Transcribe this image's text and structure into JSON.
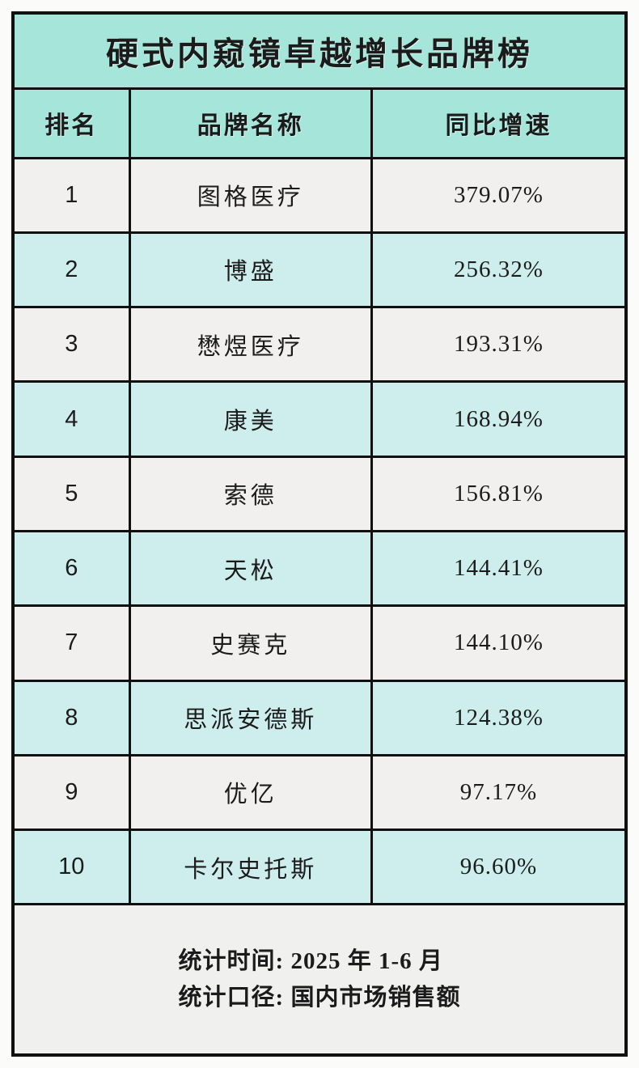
{
  "title": "硬式内窥镜卓越增长品牌榜",
  "table": {
    "headers": [
      "排名",
      "品牌名称",
      "同比增速"
    ],
    "rows": [
      {
        "rank": "1",
        "brand": "图格医疗",
        "growth": "379.07%"
      },
      {
        "rank": "2",
        "brand": "博盛",
        "growth": "256.32%"
      },
      {
        "rank": "3",
        "brand": "懋煜医疗",
        "growth": "193.31%"
      },
      {
        "rank": "4",
        "brand": "康美",
        "growth": "168.94%"
      },
      {
        "rank": "5",
        "brand": "索德",
        "growth": "156.81%"
      },
      {
        "rank": "6",
        "brand": "天松",
        "growth": "144.41%"
      },
      {
        "rank": "7",
        "brand": "史赛克",
        "growth": "144.10%"
      },
      {
        "rank": "8",
        "brand": "思派安德斯",
        "growth": "124.38%"
      },
      {
        "rank": "9",
        "brand": "优亿",
        "growth": "97.17%"
      },
      {
        "rank": "10",
        "brand": "卡尔史托斯",
        "growth": "96.60%"
      }
    ]
  },
  "footer": {
    "line1": "统计时间: 2025 年 1-6 月",
    "line2": "统计口径: 国内市场销售额"
  },
  "colors": {
    "title_bg": "#a6e5da",
    "header_bg": "#a6e5da",
    "row_teal_bg": "#cdeeed",
    "row_gray_bg": "#f1f0ee",
    "footer_bg": "#f0f0ef",
    "border": "#101010",
    "text": "#1b1b1b"
  },
  "chart_data": {
    "type": "table",
    "title": "硬式内窥镜卓越增长品牌榜",
    "columns": [
      "排名",
      "品牌名称",
      "同比增速"
    ],
    "rows": [
      [
        1,
        "图格医疗",
        "379.07%"
      ],
      [
        2,
        "博盛",
        "256.32%"
      ],
      [
        3,
        "懋煜医疗",
        "193.31%"
      ],
      [
        4,
        "康美",
        "168.94%"
      ],
      [
        5,
        "索德",
        "156.81%"
      ],
      [
        6,
        "天松",
        "144.41%"
      ],
      [
        7,
        "史赛克",
        "144.10%"
      ],
      [
        8,
        "思派安德斯",
        "124.38%"
      ],
      [
        9,
        "优亿",
        "97.17%"
      ],
      [
        10,
        "卡尔史托斯",
        "96.60%"
      ]
    ],
    "growth_values_percent": [
      379.07,
      256.32,
      193.31,
      168.94,
      156.81,
      144.41,
      144.1,
      124.38,
      97.17,
      96.6
    ],
    "notes": [
      "统计时间: 2025 年 1-6 月",
      "统计口径: 国内市场销售额"
    ]
  }
}
